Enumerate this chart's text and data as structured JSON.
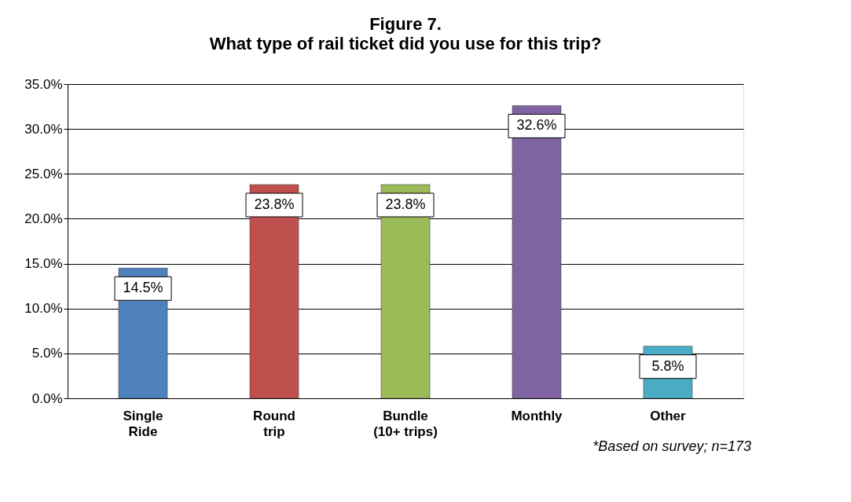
{
  "chart_data": {
    "type": "bar",
    "title": "Figure 7.",
    "subtitle": "What type of rail ticket did you use for this trip?",
    "categories": [
      "Single Ride",
      "Round trip",
      "Bundle (10+ trips)",
      "Monthly",
      "Other"
    ],
    "values": [
      14.5,
      23.8,
      23.8,
      32.6,
      5.8
    ],
    "colors": [
      "#4f81bd",
      "#c0504d",
      "#9bbb59",
      "#8064a2",
      "#4bacc6"
    ],
    "value_labels": [
      "14.5%",
      "23.8%",
      "23.8%",
      "32.6%",
      "5.8%"
    ],
    "ylim": [
      0,
      35
    ],
    "yticks": [
      {
        "value": 0,
        "label": "0.0%"
      },
      {
        "value": 5,
        "label": "5.0%"
      },
      {
        "value": 10,
        "label": "10.0%"
      },
      {
        "value": 15,
        "label": "15.0%"
      },
      {
        "value": 20,
        "label": "20.0%"
      },
      {
        "value": 25,
        "label": "25.0%"
      },
      {
        "value": 30,
        "label": "30.0%"
      },
      {
        "value": 35,
        "label": "35.0%"
      }
    ],
    "grid": "y",
    "annotations": [
      "*Based on survey; n=173"
    ]
  }
}
